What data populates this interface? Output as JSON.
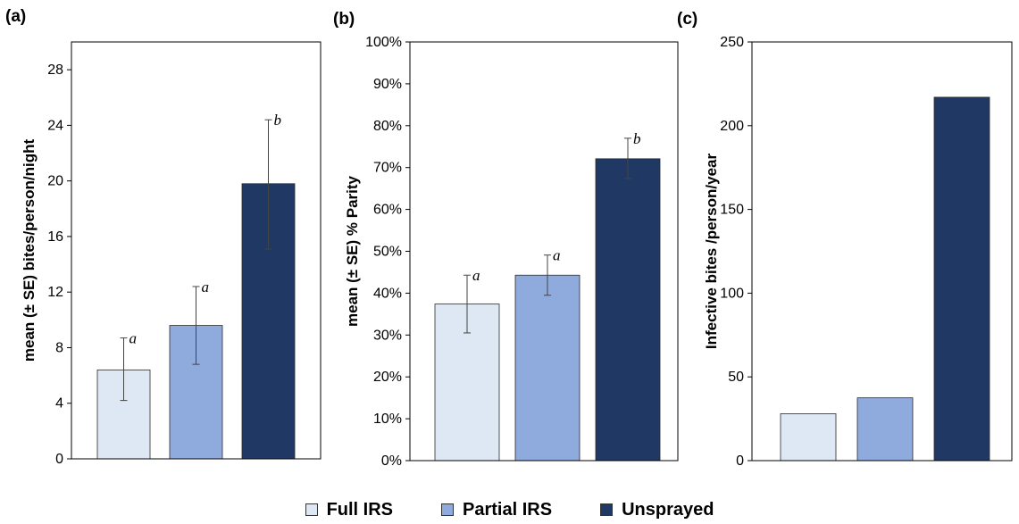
{
  "colors": {
    "full_irs": "#dde8f4",
    "partial_irs": "#8faadc",
    "unsprayed": "#203864",
    "axis": "#000000",
    "error_bar": "#444444"
  },
  "legend": [
    {
      "key": "full_irs",
      "label": "Full IRS"
    },
    {
      "key": "partial_irs",
      "label": "Partial IRS"
    },
    {
      "key": "unsprayed",
      "label": "Unsprayed"
    }
  ],
  "chart_data": [
    {
      "panel": "(a)",
      "type": "bar",
      "categories": [
        "Full IRS",
        "Partial IRS",
        "Unsprayed"
      ],
      "values": [
        6.4,
        9.6,
        19.8
      ],
      "error_low": [
        4.2,
        6.8,
        15.1
      ],
      "error_high": [
        8.7,
        12.4,
        24.4
      ],
      "significance": [
        "a",
        "a",
        "b"
      ],
      "ylabel": "mean (± SE) bites/person/night",
      "ylim": [
        0,
        30
      ],
      "yticks": [
        0,
        4,
        8,
        12,
        16,
        20,
        24,
        28
      ],
      "ytick_labels": [
        "0",
        "4",
        "8",
        "12",
        "16",
        "20",
        "24",
        "28"
      ]
    },
    {
      "panel": "(b)",
      "type": "bar",
      "categories": [
        "Full IRS",
        "Partial IRS",
        "Unsprayed"
      ],
      "values": [
        37.4,
        44.3,
        72.1
      ],
      "error_low": [
        30.5,
        39.5,
        67.4
      ],
      "error_high": [
        44.3,
        49.1,
        77.0
      ],
      "significance": [
        "a",
        "a",
        "b"
      ],
      "ylabel": "mean (± SE) % Parity",
      "ylim": [
        0,
        100
      ],
      "yticks": [
        0,
        10,
        20,
        30,
        40,
        50,
        60,
        70,
        80,
        90,
        100
      ],
      "ytick_labels": [
        "0%",
        "10%",
        "20%",
        "30%",
        "40%",
        "50%",
        "60%",
        "70%",
        "80%",
        "90%",
        "100%"
      ]
    },
    {
      "panel": "(c)",
      "type": "bar",
      "categories": [
        "Full IRS",
        "Partial IRS",
        "Unsprayed"
      ],
      "values": [
        28,
        37.5,
        217
      ],
      "error_low": [],
      "error_high": [],
      "significance": [],
      "ylabel": "Infective bites /person/year",
      "ylim": [
        0,
        250
      ],
      "yticks": [
        0,
        50,
        100,
        150,
        200,
        250
      ],
      "ytick_labels": [
        "0",
        "50",
        "100",
        "150",
        "200",
        "250"
      ]
    }
  ]
}
